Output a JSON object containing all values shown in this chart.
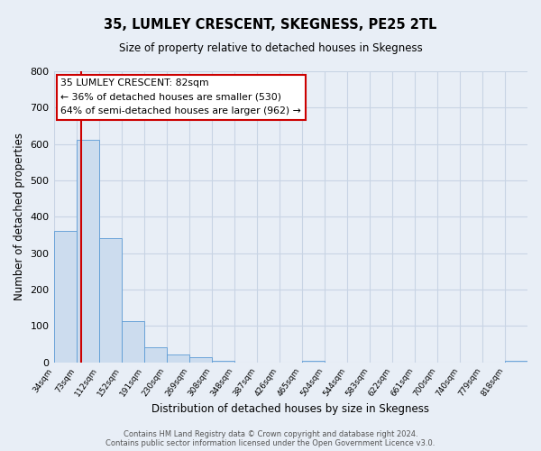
{
  "title": "35, LUMLEY CRESCENT, SKEGNESS, PE25 2TL",
  "subtitle": "Size of property relative to detached houses in Skegness",
  "xlabel": "Distribution of detached houses by size in Skegness",
  "ylabel": "Number of detached properties",
  "bin_labels": [
    "34sqm",
    "73sqm",
    "112sqm",
    "152sqm",
    "191sqm",
    "230sqm",
    "269sqm",
    "308sqm",
    "348sqm",
    "387sqm",
    "426sqm",
    "465sqm",
    "504sqm",
    "544sqm",
    "583sqm",
    "622sqm",
    "661sqm",
    "700sqm",
    "740sqm",
    "779sqm",
    "818sqm"
  ],
  "bar_heights": [
    360,
    611,
    342,
    114,
    40,
    22,
    14,
    5,
    0,
    0,
    0,
    5,
    0,
    0,
    0,
    0,
    0,
    0,
    0,
    0,
    5
  ],
  "bar_color": "#ccdcee",
  "bar_edge_color": "#5b9bd5",
  "ylim": [
    0,
    800
  ],
  "yticks": [
    0,
    100,
    200,
    300,
    400,
    500,
    600,
    700,
    800
  ],
  "annotation_title": "35 LUMLEY CRESCENT: 82sqm",
  "annotation_line1": "← 36% of detached houses are smaller (530)",
  "annotation_line2": "64% of semi-detached houses are larger (962) →",
  "annotation_box_color": "#ffffff",
  "annotation_box_edge": "#cc0000",
  "property_vline_color": "#cc0000",
  "grid_color": "#c8d4e4",
  "background_color": "#e8eef6",
  "footer1": "Contains HM Land Registry data © Crown copyright and database right 2024.",
  "footer2": "Contains public sector information licensed under the Open Government Licence v3.0."
}
